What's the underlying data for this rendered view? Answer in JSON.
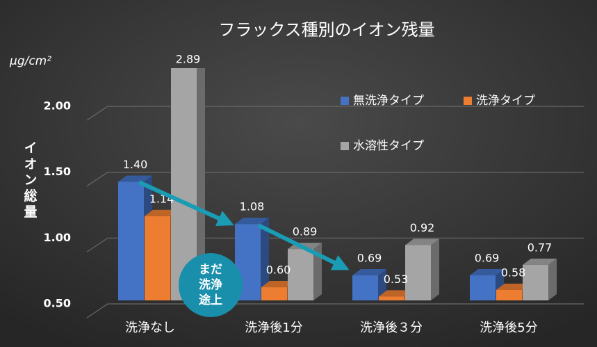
{
  "chart_data": {
    "type": "bar3d",
    "title": "フラックス種別のイオン残量",
    "unit_label": "μg/cm²",
    "y_axis_label": "イオン総量",
    "categories": [
      "洗浄なし",
      "洗浄後1分",
      "洗浄後３分",
      "洗浄後5分"
    ],
    "series": [
      {
        "name": "無洗浄タイプ",
        "color": "#4472c4",
        "values": [
          1.4,
          1.08,
          0.69,
          0.69
        ],
        "value_labels": [
          "1.40",
          "1.08",
          "0.69",
          "0.69"
        ]
      },
      {
        "name": "洗浄タイプ",
        "color": "#ed7d31",
        "values": [
          1.14,
          0.6,
          0.53,
          0.58
        ],
        "value_labels": [
          "1.14",
          "0.60",
          "0.53",
          "0.58"
        ]
      },
      {
        "name": "水溶性タイプ",
        "color": "#a5a5a5",
        "values": [
          2.89,
          0.89,
          0.92,
          0.77
        ],
        "value_labels": [
          "2.89",
          "0.89",
          "0.92",
          "0.77"
        ]
      }
    ],
    "ylim": [
      0.5,
      2.2
    ],
    "yticks": [
      {
        "value": 0.5,
        "label": "0.50"
      },
      {
        "value": 1.0,
        "label": "1.00"
      },
      {
        "value": 1.5,
        "label": "1.50"
      },
      {
        "value": 2.0,
        "label": "2.00"
      }
    ],
    "grid": true,
    "annotation": [
      "まだ",
      "洗浄",
      "途上"
    ]
  }
}
